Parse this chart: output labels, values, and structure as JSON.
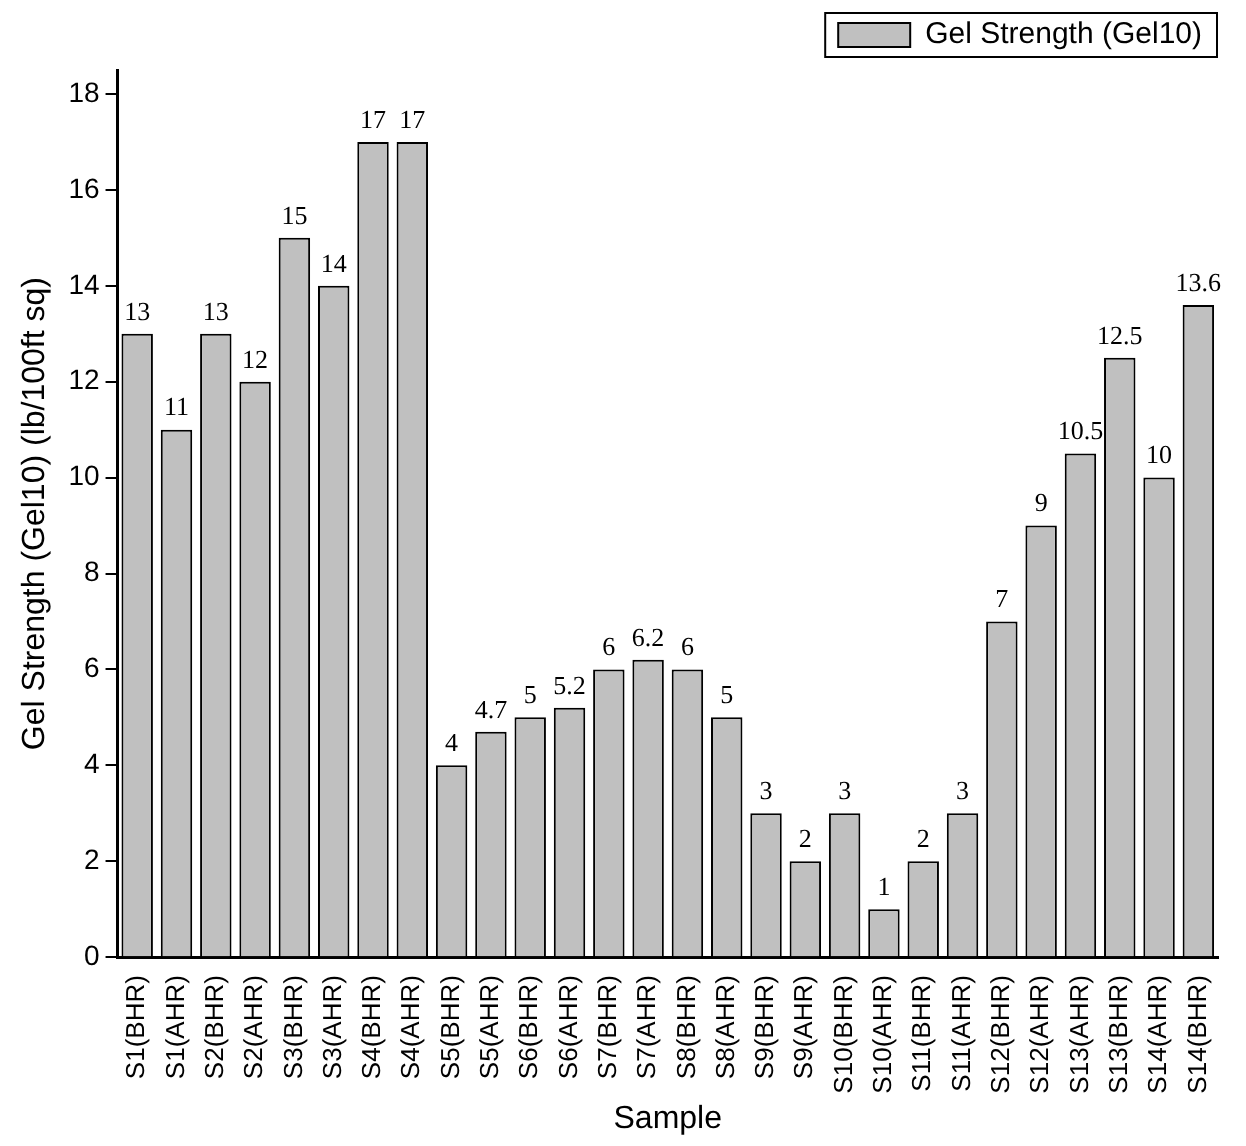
{
  "chart_data": {
    "type": "bar",
    "xlabel": "Sample",
    "ylabel": "Gel Strength (Gel10) (lb/100ft sq)",
    "categories": [
      "S1(BHR)",
      "S1(AHR)",
      "S2(BHR)",
      "S2(AHR)",
      "S3(BHR)",
      "S3(AHR)",
      "S4(BHR)",
      "S4(AHR)",
      "S5(BHR)",
      "S5(AHR)",
      "S6(BHR)",
      "S6(AHR)",
      "S7(BHR)",
      "S7(AHR)",
      "S8(BHR)",
      "S8(AHR)",
      "S9(BHR)",
      "S9(AHR)",
      "S10(BHR)",
      "S10(AHR)",
      "S11(BHR)",
      "S11(AHR)",
      "S12(BHR)",
      "S12(AHR)",
      "S13(AHR)",
      "S13(BHR)",
      "S14(AHR)",
      "S14(BHR)"
    ],
    "series": [
      {
        "name": "Gel Strength (Gel10)",
        "color": "#c0c0c0",
        "values": [
          13,
          11,
          13,
          12,
          15,
          14,
          17,
          17,
          4,
          4.7,
          5,
          5.2,
          6,
          6.2,
          6,
          5,
          3,
          2,
          3,
          1,
          2,
          3,
          7,
          9,
          10.5,
          12.5,
          10,
          13.6
        ]
      }
    ],
    "ylim": [
      0,
      18.5
    ],
    "yticks": [
      0,
      2,
      4,
      6,
      8,
      10,
      12,
      14,
      16,
      18
    ],
    "grid": false,
    "legend": "top right",
    "data_labels": true
  }
}
